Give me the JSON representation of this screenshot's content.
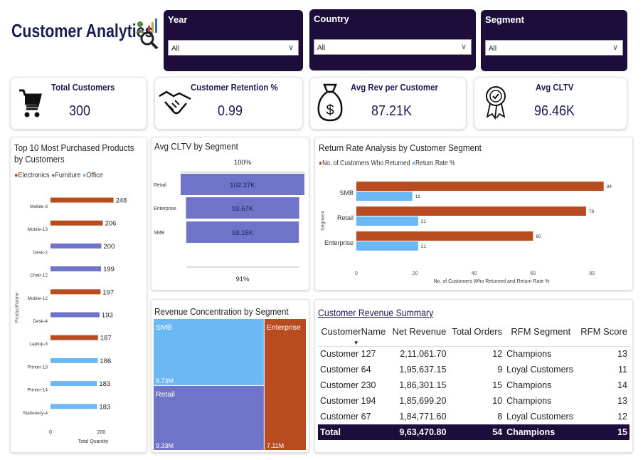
{
  "header": {
    "title": "Customer Analytics",
    "logo_icon": "analytics-person-icon"
  },
  "filters": [
    {
      "label": "Year",
      "value": "All"
    },
    {
      "label": "Country",
      "value": "All"
    },
    {
      "label": "Segment",
      "value": "All"
    }
  ],
  "kpis": [
    {
      "title": "Total Customers",
      "value": "300",
      "icon": "cart-icon"
    },
    {
      "title": "Customer Retention %",
      "value": "0.99",
      "icon": "handshake-icon"
    },
    {
      "title": "Avg Rev per Customer",
      "value": "87.21K",
      "icon": "money-bag-icon"
    },
    {
      "title": "Avg CLTV",
      "value": "96.46K",
      "icon": "badge-icon"
    }
  ],
  "colors": {
    "navy": "#1c0d3b",
    "electronics": "#b84c1f",
    "furniture": "#6f74c9",
    "office": "#6bb8f5"
  },
  "chart_data": [
    {
      "type": "bar",
      "title": "Top 10 Most Purchased Products by Customers",
      "legend": [
        "Electronics",
        "Furniture",
        "Office"
      ],
      "legend_position": "top-left",
      "xlabel": "Total Quantity",
      "ylabel": "ProductName",
      "xticks": [
        "0",
        "200"
      ],
      "xlim": [
        0,
        280
      ],
      "categories": [
        "Mobile-3",
        "Mobile-13",
        "Desk-2",
        "Chair-12",
        "Mobile-12",
        "Desk-4",
        "Laptop-3",
        "Printer-13",
        "Printer-14",
        "Stationery-4"
      ],
      "values": [
        248,
        206,
        200,
        199,
        197,
        193,
        187,
        186,
        183,
        183
      ],
      "groups": [
        "Electronics",
        "Electronics",
        "Furniture",
        "Furniture",
        "Electronics",
        "Furniture",
        "Electronics",
        "Office",
        "Office",
        "Office"
      ]
    },
    {
      "type": "bar",
      "title": "Avg CLTV by Segment",
      "top_label": "100%",
      "bottom_label": "91%",
      "categories": [
        "Retail",
        "Enterprise",
        "SMB"
      ],
      "values": [
        102.37,
        93.67,
        93.15
      ],
      "value_labels": [
        "102.37K",
        "93.67K",
        "93.15K"
      ]
    },
    {
      "type": "bar",
      "title": "Return Rate Analysis by Customer Segment",
      "legend_position": "top-left",
      "xlabel": "No. of Customers Who Returned and Return Rate %",
      "ylabel": "Segment",
      "xticks": [
        "0",
        "20",
        "40",
        "60",
        "80"
      ],
      "xlim": [
        0,
        86
      ],
      "categories": [
        "SMB",
        "Retail",
        "Enterprise"
      ],
      "series": [
        {
          "name": "No. of Customers Who Returned",
          "values": [
            84,
            78,
            60
          ]
        },
        {
          "name": "Return Rate %",
          "values": [
            19,
            21,
            21
          ]
        }
      ]
    },
    {
      "type": "treemap",
      "title": "Revenue Concentration by Segment",
      "categories": [
        "SMB",
        "Retail",
        "Enterprise"
      ],
      "values": [
        9.73,
        9.33,
        7.11
      ],
      "value_labels": [
        "9.73M",
        "9.33M",
        "7.11M"
      ]
    }
  ],
  "summary": {
    "title": "Customer Revenue Summary",
    "columns": [
      "CustomerName",
      "Net Revenue",
      "Total Orders",
      "RFM Segment",
      "RFM Score"
    ],
    "rows": [
      [
        "Customer 127",
        "2,11,061.70",
        "12",
        "Champions",
        "13"
      ],
      [
        "Customer 64",
        "1,95,637.15",
        "9",
        "Loyal Customers",
        "11"
      ],
      [
        "Customer 230",
        "1,86,301.15",
        "15",
        "Champions",
        "14"
      ],
      [
        "Customer 194",
        "1,85,699.20",
        "10",
        "Champions",
        "13"
      ],
      [
        "Customer 67",
        "1,84,771.60",
        "8",
        "Loyal Customers",
        "12"
      ]
    ],
    "total": [
      "Total",
      "9,63,470.80",
      "54",
      "Champions",
      "15"
    ]
  }
}
